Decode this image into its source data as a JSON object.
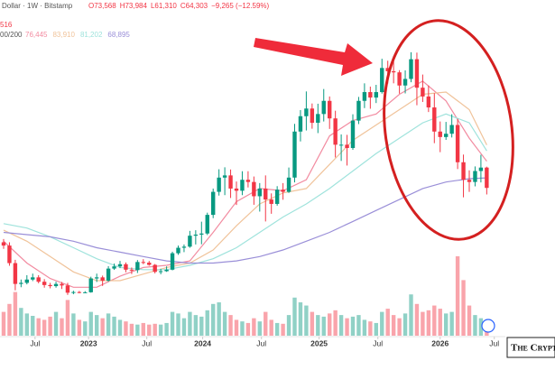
{
  "chart_data": {
    "type": "candlestick",
    "header": {
      "symbol": "Dollar · 1W · Bitstamp",
      "ohlc": [
        "O73,568",
        "H73,984",
        "L61,310",
        "C64,303",
        "−9,265 (−12.59%)"
      ],
      "ma_label": "00/200",
      "ma_values": [
        "76,445",
        "83,910",
        "81,202",
        "68,895"
      ],
      "extra": "516"
    },
    "watermark": "The Crypt",
    "up_color": "#089981",
    "down_color": "#f23645",
    "ylim": [
      8000,
      150000
    ],
    "volume_lim": [
      0,
      100
    ],
    "xticks": [
      {
        "value": 5.4,
        "label": "Jul"
      },
      {
        "value": 14.6,
        "label": "2023"
      },
      {
        "value": 24.6,
        "label": "Jul"
      },
      {
        "value": 34.2,
        "label": "2024"
      },
      {
        "value": 44.3,
        "label": "Jul"
      },
      {
        "value": 54.2,
        "label": "2025"
      },
      {
        "value": 64.3,
        "label": "Jul"
      },
      {
        "value": 75,
        "label": "2026"
      },
      {
        "value": 84.3,
        "label": "Jul"
      }
    ],
    "open": [
      39500,
      38000,
      30000,
      20500,
      21000,
      22500,
      23500,
      21500,
      20000,
      19500,
      20500,
      19800,
      16500,
      16800,
      16600,
      16700,
      23000,
      23500,
      22000,
      27500,
      28500,
      29500,
      27000,
      26800,
      30500,
      30200,
      29200,
      26000,
      26300,
      27000,
      34500,
      37000,
      37500,
      42500,
      43000,
      43500,
      52000,
      62500,
      69000,
      70000,
      64000,
      63000,
      68000,
      67000,
      60500,
      64000,
      59000,
      57000,
      63500,
      62500,
      69000,
      90000,
      97000,
      100500,
      94000,
      98000,
      104000,
      96000,
      84000,
      84000,
      82500,
      95000,
      104000,
      108000,
      105500,
      108000,
      119000,
      117500,
      117000,
      111000,
      114000,
      123000,
      110000,
      106000,
      101000,
      90000,
      87500,
      89000,
      93000,
      76000,
      68000,
      67000,
      72000,
      73568
    ],
    "high": [
      41000,
      39500,
      31500,
      22500,
      24500,
      25200,
      24500,
      22700,
      21000,
      21500,
      21400,
      21000,
      17400,
      17300,
      17200,
      23800,
      25200,
      24300,
      28600,
      29800,
      31000,
      30300,
      28000,
      31400,
      31800,
      31000,
      29600,
      27400,
      28500,
      35200,
      38000,
      38500,
      44700,
      45000,
      48900,
      53000,
      64000,
      72800,
      73700,
      72700,
      67200,
      71900,
      71900,
      69500,
      66500,
      70000,
      61800,
      65100,
      66500,
      73600,
      93500,
      99800,
      108300,
      102800,
      102700,
      109400,
      106000,
      99500,
      88700,
      88500,
      97900,
      105800,
      112000,
      110500,
      111300,
      123200,
      122300,
      124500,
      118000,
      117900,
      126200,
      126000,
      116000,
      111000,
      107500,
      94600,
      94400,
      97900,
      95800,
      79500,
      72300,
      74100,
      79400,
      73984
    ],
    "low": [
      36500,
      28800,
      17600,
      19000,
      20300,
      21800,
      20800,
      18800,
      18500,
      18800,
      18200,
      15500,
      15800,
      16200,
      16300,
      16500,
      21400,
      19600,
      21500,
      26900,
      27700,
      25800,
      25000,
      25500,
      29500,
      28800,
      25300,
      24900,
      26000,
      26700,
      33800,
      35000,
      37000,
      38500,
      38600,
      42800,
      50500,
      60800,
      61000,
      59700,
      56500,
      61000,
      64500,
      56600,
      53500,
      49000,
      52500,
      56200,
      58900,
      62000,
      66800,
      85500,
      90500,
      91300,
      89300,
      94600,
      91200,
      78200,
      76600,
      74500,
      81700,
      93400,
      100700,
      100400,
      103000,
      107300,
      111900,
      112000,
      107300,
      107400,
      112500,
      102000,
      103500,
      98900,
      84700,
      80600,
      86200,
      87300,
      72900,
      60000,
      62500,
      65000,
      66800,
      61310
    ],
    "close": [
      38000,
      30000,
      20500,
      21000,
      22500,
      23500,
      21500,
      20000,
      19500,
      20500,
      19800,
      16500,
      16800,
      16600,
      16700,
      23000,
      23500,
      22000,
      27500,
      28500,
      29500,
      27000,
      26800,
      30500,
      30200,
      29200,
      26000,
      26300,
      27000,
      34500,
      37000,
      37500,
      42500,
      43000,
      43500,
      52000,
      62500,
      69000,
      70000,
      64000,
      63000,
      68000,
      67000,
      60500,
      64000,
      59000,
      57000,
      63500,
      62500,
      69000,
      90000,
      97000,
      100500,
      94000,
      98000,
      104000,
      96000,
      84000,
      84000,
      82500,
      95000,
      104000,
      108000,
      105500,
      108000,
      119000,
      117500,
      117000,
      111000,
      114000,
      123000,
      110000,
      106000,
      101000,
      90000,
      87500,
      89000,
      93000,
      76000,
      68000,
      67000,
      72000,
      73568,
      64303
    ],
    "volume": [
      30,
      40,
      55,
      35,
      28,
      25,
      22,
      20,
      24,
      30,
      22,
      45,
      28,
      20,
      18,
      30,
      26,
      22,
      28,
      24,
      20,
      18,
      15,
      14,
      16,
      14,
      15,
      14,
      16,
      30,
      28,
      22,
      30,
      26,
      24,
      32,
      40,
      42,
      30,
      26,
      20,
      18,
      16,
      22,
      18,
      30,
      20,
      16,
      15,
      26,
      48,
      42,
      38,
      30,
      26,
      24,
      28,
      32,
      26,
      22,
      24,
      26,
      20,
      18,
      16,
      30,
      34,
      26,
      22,
      28,
      52,
      40,
      30,
      32,
      38,
      34,
      28,
      30,
      100,
      70,
      38,
      26,
      22,
      18
    ],
    "ma_x": [
      0,
      4,
      8,
      12,
      16,
      20,
      24,
      28,
      32,
      36,
      40,
      44,
      48,
      52,
      56,
      60,
      64,
      68,
      72,
      76,
      80,
      83
    ],
    "ma_series": [
      {
        "color": "#f28ba0",
        "values": [
          40000,
          30000,
          23000,
          19000,
          19000,
          24000,
          28000,
          29000,
          31000,
          44000,
          58000,
          64000,
          63000,
          68000,
          88000,
          95000,
          98000,
          107000,
          113000,
          104000,
          87000,
          76445
        ]
      },
      {
        "color": "#f0c39a",
        "values": [
          45000,
          40000,
          33000,
          26000,
          22000,
          22000,
          25000,
          28000,
          30000,
          36000,
          47000,
          57000,
          62000,
          64000,
          75000,
          86000,
          93000,
          100000,
          107000,
          108000,
          100000,
          83910
        ]
      },
      {
        "color": "#9fe3dc",
        "values": [
          48000,
          46000,
          42000,
          37000,
          32000,
          28000,
          27000,
          27000,
          29000,
          32000,
          37000,
          44000,
          51000,
          57000,
          64000,
          72000,
          80000,
          87000,
          94000,
          98000,
          94000,
          81202
        ]
      },
      {
        "color": "#9a8fd8",
        "values": [
          44000,
          43000,
          42000,
          40000,
          37000,
          35000,
          33000,
          31000,
          30000,
          30000,
          31000,
          33000,
          36000,
          40000,
          44000,
          49000,
          54000,
          59000,
          64000,
          67000,
          68500,
          68895
        ]
      }
    ]
  }
}
